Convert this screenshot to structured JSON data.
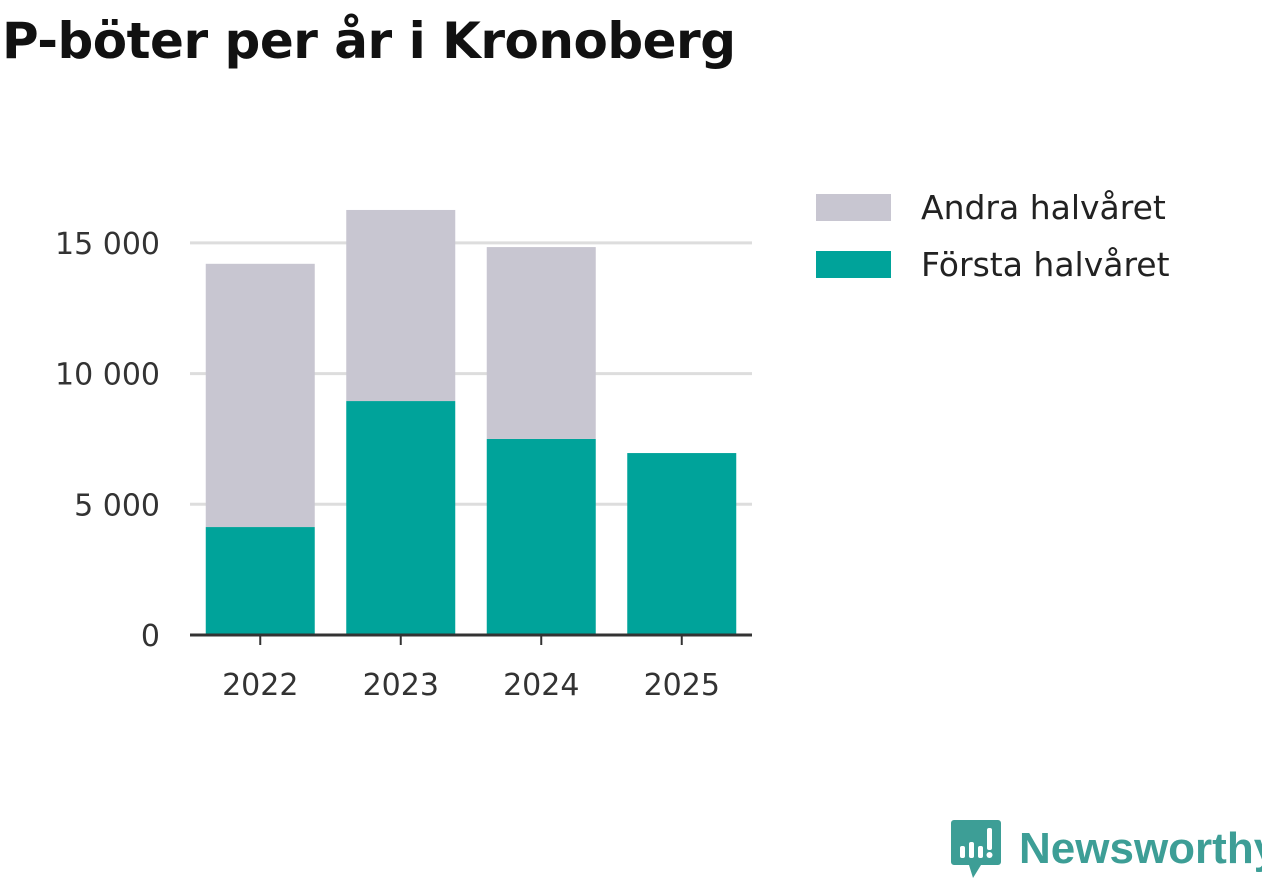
{
  "title": "P-böter per år i Kronoberg",
  "chart_data": {
    "type": "bar",
    "stacked": true,
    "title": "P-böter per år i Kronoberg",
    "xlabel": "",
    "ylabel": "",
    "categories": [
      "2022",
      "2023",
      "2024",
      "2025"
    ],
    "series": [
      {
        "name": "Första halvåret",
        "color": "#00a39a",
        "values": [
          4130,
          8950,
          7500,
          6960
        ]
      },
      {
        "name": "Andra halvåret",
        "color": "#c8c6d1",
        "values": [
          10070,
          7310,
          7340,
          null
        ]
      }
    ],
    "ylim": [
      0,
      17000
    ],
    "yticks": [
      0,
      5000,
      10000,
      15000
    ],
    "ytick_labels": [
      "0",
      "5 000",
      "10 000",
      "15 000"
    ],
    "grid": true,
    "legend": "right",
    "legend_entries": [
      "Andra halvåret",
      "Första halvåret"
    ]
  },
  "branding": {
    "logo_text": "Newsworthy",
    "color": "#3d9e96"
  }
}
